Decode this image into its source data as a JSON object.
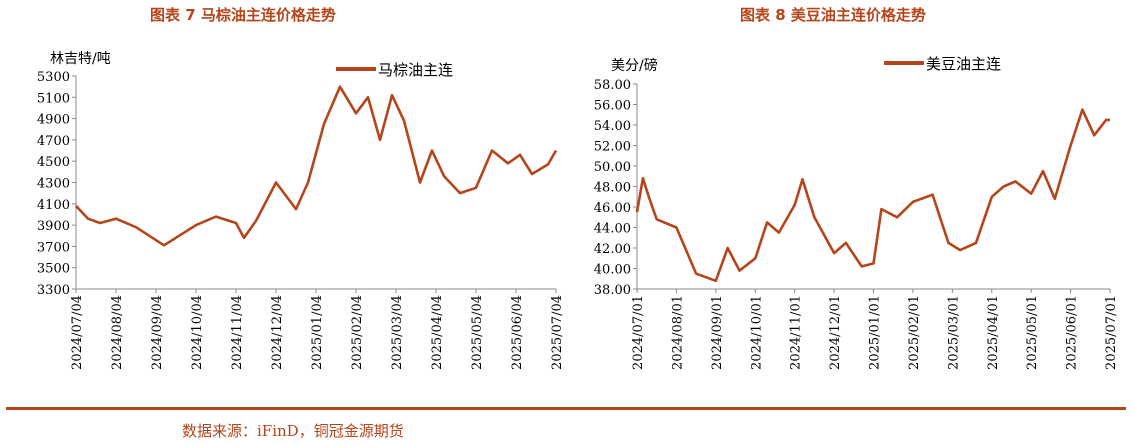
{
  "line_color": "#b5451b",
  "source": "数据来源：iFinD，铜冠金源期货",
  "chart_data": [
    {
      "type": "line",
      "title": "图表 7  马棕油主连价格走势",
      "ylabel": "林吉特/吨",
      "ylim": [
        3300,
        5300
      ],
      "y_ticks": [
        "5300",
        "5100",
        "4900",
        "4700",
        "4500",
        "4300",
        "4100",
        "3900",
        "3700",
        "3500",
        "3300"
      ],
      "x_ticks": [
        "2024/07/04",
        "2024/08/04",
        "2024/09/04",
        "2024/10/04",
        "2024/11/04",
        "2024/12/04",
        "2025/01/04",
        "2025/02/04",
        "2025/03/04",
        "2025/04/04",
        "2025/05/04",
        "2025/06/04",
        "2025/07/04"
      ],
      "legend_position": "top-right",
      "series": [
        {
          "name": "马棕油主连",
          "x": [
            0,
            0.3,
            0.6,
            1.0,
            1.5,
            2.2,
            3.0,
            3.5,
            4.0,
            4.2,
            4.5,
            5.0,
            5.5,
            5.8,
            6.2,
            6.6,
            7.0,
            7.3,
            7.6,
            7.9,
            8.2,
            8.6,
            8.9,
            9.2,
            9.6,
            10.0,
            10.4,
            10.8,
            11.1,
            11.4,
            11.8,
            12.0
          ],
          "y": [
            4080,
            3960,
            3920,
            3960,
            3880,
            3710,
            3900,
            3980,
            3920,
            3780,
            3940,
            4300,
            4050,
            4300,
            4850,
            5200,
            4950,
            5100,
            4700,
            5120,
            4880,
            4300,
            4600,
            4360,
            4200,
            4250,
            4600,
            4480,
            4560,
            4380,
            4470,
            4600
          ]
        }
      ]
    },
    {
      "type": "line",
      "title": "图表 8  美豆油主连价格走势",
      "ylabel": "美分/磅",
      "ylim": [
        38,
        58
      ],
      "y_ticks": [
        "58.00",
        "56.00",
        "54.00",
        "52.00",
        "50.00",
        "48.00",
        "46.00",
        "44.00",
        "42.00",
        "40.00",
        "38.00"
      ],
      "x_ticks": [
        "2024/07/01",
        "2024/08/01",
        "2024/09/01",
        "2024/10/01",
        "2024/11/01",
        "2024/12/01",
        "2025/01/01",
        "2025/02/01",
        "2025/03/01",
        "2025/04/01",
        "2025/05/01",
        "2025/06/01",
        "2025/07/01"
      ],
      "legend_position": "top-right",
      "series": [
        {
          "name": "美豆油主连",
          "x": [
            0,
            0.15,
            0.3,
            0.5,
            1.0,
            1.5,
            2.0,
            2.3,
            2.6,
            3.0,
            3.3,
            3.6,
            4.0,
            4.2,
            4.5,
            5.0,
            5.3,
            5.7,
            6.0,
            6.2,
            6.6,
            7.0,
            7.5,
            7.9,
            8.2,
            8.6,
            9.0,
            9.3,
            9.6,
            10.0,
            10.3,
            10.6,
            11.0,
            11.3,
            11.6,
            11.9,
            12.0
          ],
          "y": [
            45.5,
            48.8,
            47.0,
            44.8,
            44.0,
            39.5,
            38.8,
            42.0,
            39.8,
            41.0,
            44.5,
            43.5,
            46.2,
            48.7,
            45.0,
            41.5,
            42.5,
            40.2,
            40.5,
            45.8,
            45.0,
            46.5,
            47.2,
            42.5,
            41.8,
            42.5,
            47.0,
            48.0,
            48.5,
            47.3,
            49.5,
            46.8,
            52.0,
            55.5,
            53.0,
            54.5,
            54.5
          ]
        }
      ]
    }
  ]
}
